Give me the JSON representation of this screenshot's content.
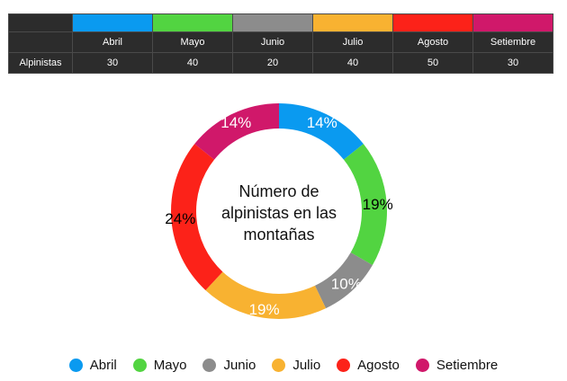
{
  "table": {
    "row_label": "Alpinistas"
  },
  "chart_data": {
    "type": "donut",
    "title": "Número de alpinistas en las montañas",
    "title_lines": [
      "Número de",
      "alpinistas en las",
      "montañas"
    ],
    "categories": [
      "Abril",
      "Mayo",
      "Junio",
      "Julio",
      "Agosto",
      "Setiembre"
    ],
    "values": [
      30,
      40,
      20,
      40,
      50,
      30
    ],
    "value_labels": [
      "30",
      "40",
      "20",
      "40",
      "50",
      "30"
    ],
    "percent_labels": [
      "14%",
      "19%",
      "10%",
      "19%",
      "24%",
      "14%"
    ],
    "colors": [
      "#0a9af0",
      "#52d441",
      "#8c8c8c",
      "#f8b231",
      "#fc2219",
      "#d0186a"
    ],
    "label_colors": [
      "#ffffff",
      "#000000",
      "#ffffff",
      "#ffffff",
      "#000000",
      "#ffffff"
    ],
    "legend_position": "bottom"
  }
}
